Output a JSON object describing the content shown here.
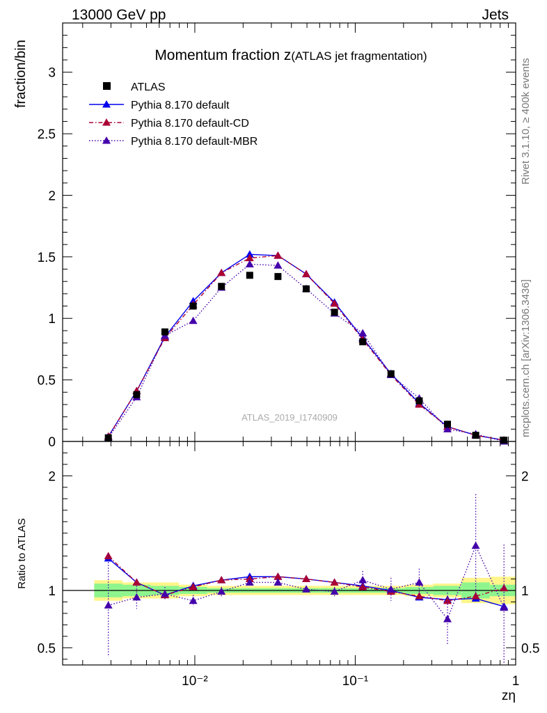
{
  "header": {
    "energy_label": "13000 GeV pp",
    "process_label": "Jets",
    "rivet_label": "Rivet 3.1.10, ≥ 400k events",
    "mcplots_label": "mcplots.cern.ch [arXiv:1306.3436]",
    "analysis_id": "ATLAS_2019_I1740909"
  },
  "chart_data": {
    "type": "scatter",
    "title_main": "Momentum fraction z",
    "title_sub": "(ATLAS jet fragmentation)",
    "xlabel": "zη",
    "ylabel_top": "fraction/bin",
    "ylabel_bottom": "Ratio to ATLAS",
    "xscale": "log",
    "xlim": [
      0.0015,
      1.0
    ],
    "ylim_top": [
      0,
      3.4
    ],
    "ylim_bottom": [
      0.35,
      2.3
    ],
    "x_tick_labels": [
      "10⁻²",
      "10⁻¹",
      "1"
    ],
    "y_tick_labels_top": [
      "0",
      "0.5",
      "1",
      "1.5",
      "2",
      "2.5",
      "3"
    ],
    "y_tick_labels_bottom": [
      "0.5",
      "1",
      "2"
    ],
    "x": [
      0.00289,
      0.00434,
      0.00651,
      0.00977,
      0.01466,
      0.02199,
      0.03298,
      0.04948,
      0.07422,
      0.11133,
      0.16699,
      0.25049,
      0.37574,
      0.56361,
      0.84541
    ],
    "x_edges": [
      0.00236,
      0.00354,
      0.00531,
      0.00797,
      0.01196,
      0.01794,
      0.02691,
      0.04036,
      0.06054,
      0.09081,
      0.13622,
      0.20433,
      0.3065,
      0.45975,
      0.68962,
      1.0
    ],
    "series": [
      {
        "name": "ATLAS",
        "style": "data",
        "color": "#000000",
        "values": [
          0.03,
          0.38,
          0.89,
          1.1,
          1.26,
          1.35,
          1.34,
          1.24,
          1.05,
          0.81,
          0.55,
          0.33,
          0.14,
          0.05,
          0.01
        ]
      },
      {
        "name": "Pythia 8.170 default",
        "style": "solid",
        "color": "#0000ee",
        "values": [
          0.04,
          0.41,
          0.85,
          1.14,
          1.37,
          1.52,
          1.51,
          1.36,
          1.13,
          0.84,
          0.55,
          0.31,
          0.12,
          0.05,
          0.01
        ],
        "ratio": [
          1.28,
          1.07,
          0.96,
          1.04,
          1.09,
          1.12,
          1.12,
          1.1,
          1.07,
          1.04,
          1.0,
          0.94,
          0.92,
          0.93,
          0.86
        ]
      },
      {
        "name": "Pythia 8.170 default-CD",
        "style": "dashdot",
        "color": "#aa0033",
        "values": [
          0.04,
          0.41,
          0.84,
          1.11,
          1.37,
          1.49,
          1.51,
          1.36,
          1.12,
          0.83,
          0.54,
          0.3,
          0.12,
          0.05,
          0.01
        ],
        "ratio": [
          1.3,
          1.07,
          0.96,
          1.03,
          1.09,
          1.1,
          1.12,
          1.1,
          1.07,
          1.03,
          0.99,
          0.95,
          0.91,
          0.95,
          1.02
        ]
      },
      {
        "name": "Pythia 8.170 default-MBR",
        "style": "dotted",
        "color": "#4400aa",
        "values": [
          0.03,
          0.36,
          0.86,
          0.98,
          1.25,
          1.44,
          1.43,
          1.24,
          1.04,
          0.88,
          0.54,
          0.35,
          0.1,
          0.06,
          0.0
        ],
        "ratio": [
          0.87,
          0.94,
          0.97,
          0.91,
          0.99,
          1.07,
          1.07,
          1.01,
          0.99,
          1.09,
          1.01,
          1.07,
          0.75,
          1.39,
          0.85
        ],
        "ratio_err": [
          0.45,
          0.1,
          0.06,
          0.05,
          0.04,
          0.03,
          0.03,
          0.03,
          0.04,
          0.08,
          0.1,
          0.12,
          0.23,
          0.45,
          0.55
        ]
      }
    ],
    "uncertainty_band": {
      "stat": [
        0.06,
        0.05,
        0.04,
        0.03,
        0.02,
        0.02,
        0.02,
        0.02,
        0.02,
        0.02,
        0.02,
        0.03,
        0.04,
        0.07,
        0.05
      ],
      "total": [
        0.09,
        0.07,
        0.07,
        0.05,
        0.04,
        0.04,
        0.04,
        0.04,
        0.04,
        0.04,
        0.04,
        0.05,
        0.06,
        0.11,
        0.12
      ]
    }
  }
}
